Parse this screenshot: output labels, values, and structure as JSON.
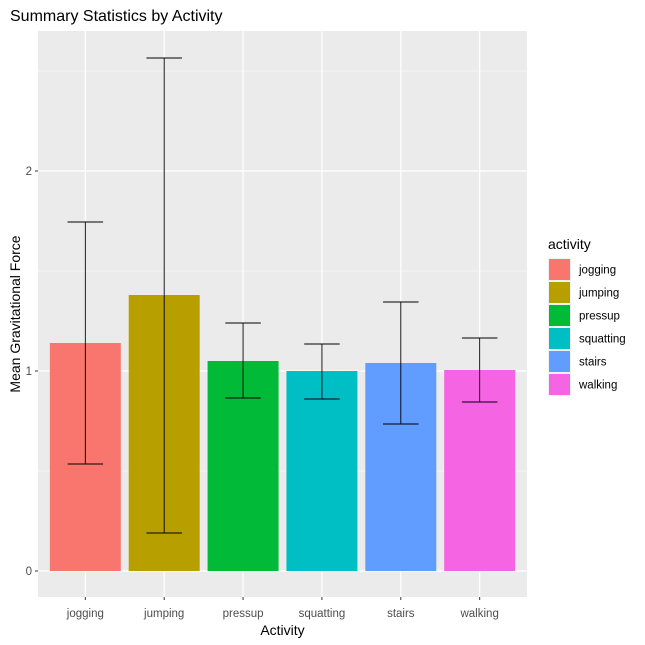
{
  "chart_data": {
    "type": "bar",
    "title": "Summary Statistics by Activity",
    "xlabel": "Activity",
    "ylabel": "Mean Gravitational Force",
    "categories": [
      "jogging",
      "jumping",
      "pressup",
      "squatting",
      "stairs",
      "walking"
    ],
    "values": [
      1.14,
      1.38,
      1.05,
      1.0,
      1.04,
      1.005
    ],
    "error_low": [
      0.535,
      0.19,
      0.865,
      0.86,
      0.735,
      0.845
    ],
    "error_high": [
      1.745,
      2.565,
      1.24,
      1.135,
      1.345,
      1.165
    ],
    "colors": [
      "#F8766D",
      "#B79F00",
      "#00BA38",
      "#00BFC4",
      "#619CFF",
      "#F564E3"
    ],
    "ylim": [
      -0.13,
      2.7
    ],
    "yticks": [
      0,
      1,
      2
    ],
    "grid": true,
    "legend": {
      "title": "activity",
      "position": "right"
    }
  }
}
